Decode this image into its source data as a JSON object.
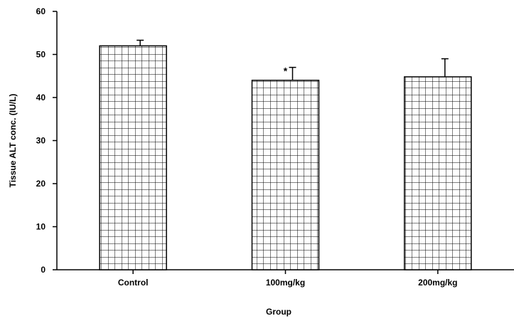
{
  "chart_data": {
    "type": "bar",
    "title": "",
    "xlabel": "Group",
    "ylabel": "Tissue ALT conc. (IU/L)",
    "categories": [
      "Control",
      "100mg/kg",
      "200mg/kg"
    ],
    "values": [
      52,
      44,
      44.8
    ],
    "error": [
      1.3,
      3,
      4.2
    ],
    "annotations": [
      "",
      "*",
      ""
    ],
    "ylim": [
      0,
      60
    ],
    "yticks": [
      0,
      10,
      20,
      30,
      40,
      50,
      60
    ],
    "grid": false,
    "bar_pattern": "grid-hatch",
    "bar_fill": "#ffffff",
    "bar_stroke": "#000000"
  }
}
